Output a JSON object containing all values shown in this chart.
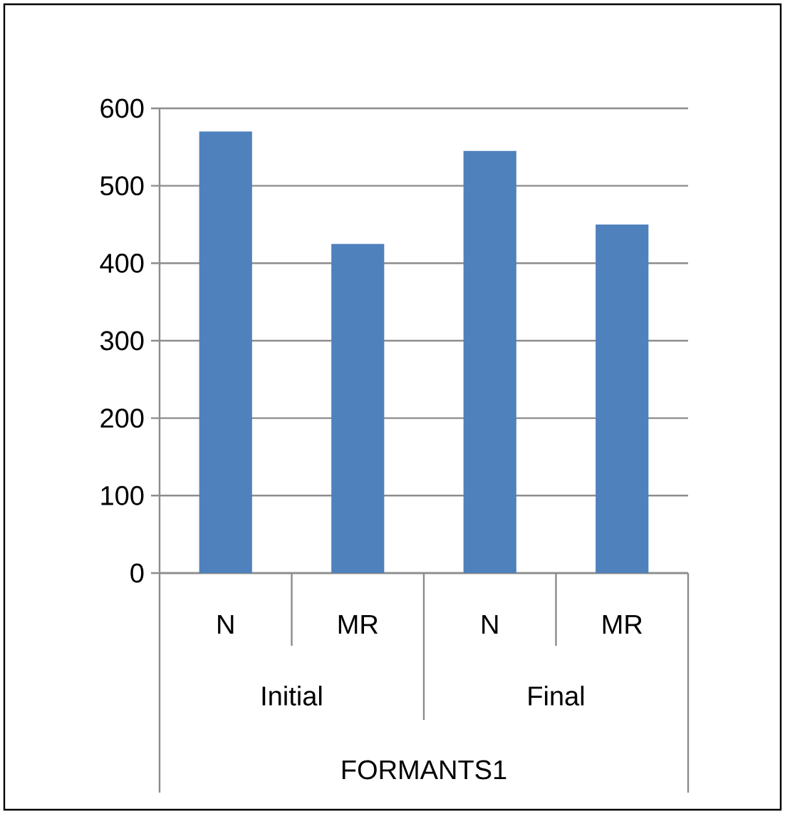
{
  "chart_data": {
    "type": "bar",
    "categories": [
      "N",
      "MR",
      "N",
      "MR"
    ],
    "values": [
      570,
      425,
      545,
      450
    ],
    "color": "#4f81bd",
    "annotations": [
      "Initial",
      "Final",
      "FORMANTS1"
    ],
    "ylim": [
      0,
      600
    ],
    "yticks": [
      0,
      100,
      200,
      300,
      400,
      500,
      600
    ],
    "grid": "y"
  }
}
